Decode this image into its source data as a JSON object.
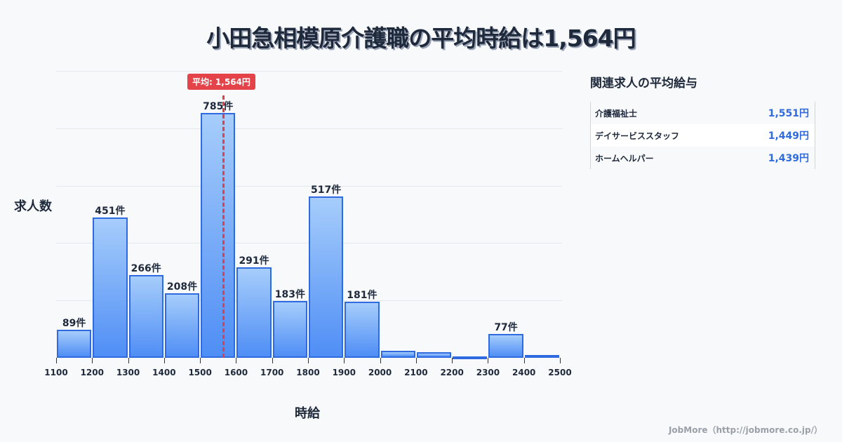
{
  "title": "小田急相模原介護職の平均時給は1,564円",
  "average_badge": "平均: 1,564円",
  "axis": {
    "ylabel": "求人数",
    "xlabel": "時給"
  },
  "related": {
    "title": "関連求人の平均給与",
    "rows": [
      {
        "name": "介護福祉士",
        "value": "1,551円"
      },
      {
        "name": "デイサービススタッフ",
        "value": "1,449円"
      },
      {
        "name": "ホームヘルパー",
        "value": "1,439円"
      }
    ]
  },
  "footer": "JobMore（http://jobmore.co.jp/）",
  "colors": {
    "bar_border": "#2f6ae0",
    "bar_top": "#a6cdfb",
    "bar_bottom": "#4f8ef5",
    "average_line": "#e5434a",
    "value_text": "#2f6ae0"
  },
  "chart_data": {
    "type": "bar",
    "title": "小田急相模原介護職の平均時給は1,564円",
    "xlabel": "時給",
    "ylabel": "求人数",
    "bin_edges": [
      1100,
      1200,
      1300,
      1400,
      1500,
      1600,
      1700,
      1800,
      1900,
      2000,
      2100,
      2200,
      2300,
      2400,
      2500
    ],
    "categories": [
      "1100-1200",
      "1200-1300",
      "1300-1400",
      "1400-1500",
      "1500-1600",
      "1600-1700",
      "1700-1800",
      "1800-1900",
      "1900-2000",
      "2000-2100",
      "2100-2200",
      "2200-2300",
      "2300-2400",
      "2400-2500"
    ],
    "values": [
      89,
      451,
      266,
      208,
      785,
      291,
      183,
      517,
      181,
      22,
      18,
      4,
      77,
      10
    ],
    "labels": [
      "89件",
      "451件",
      "266件",
      "208件",
      "785件",
      "291件",
      "183件",
      "517件",
      "181件",
      "",
      "",
      "",
      "77件",
      ""
    ],
    "tick_labels": [
      "1100",
      "1200",
      "1300",
      "1400",
      "1500",
      "1600",
      "1700",
      "1800",
      "1900",
      "2000",
      "2100",
      "2200",
      "2300",
      "2400",
      "2500"
    ],
    "average": 1564,
    "average_label": "平均: 1,564円",
    "ylim": [
      0,
      920
    ],
    "grid": true,
    "legend": "none"
  }
}
